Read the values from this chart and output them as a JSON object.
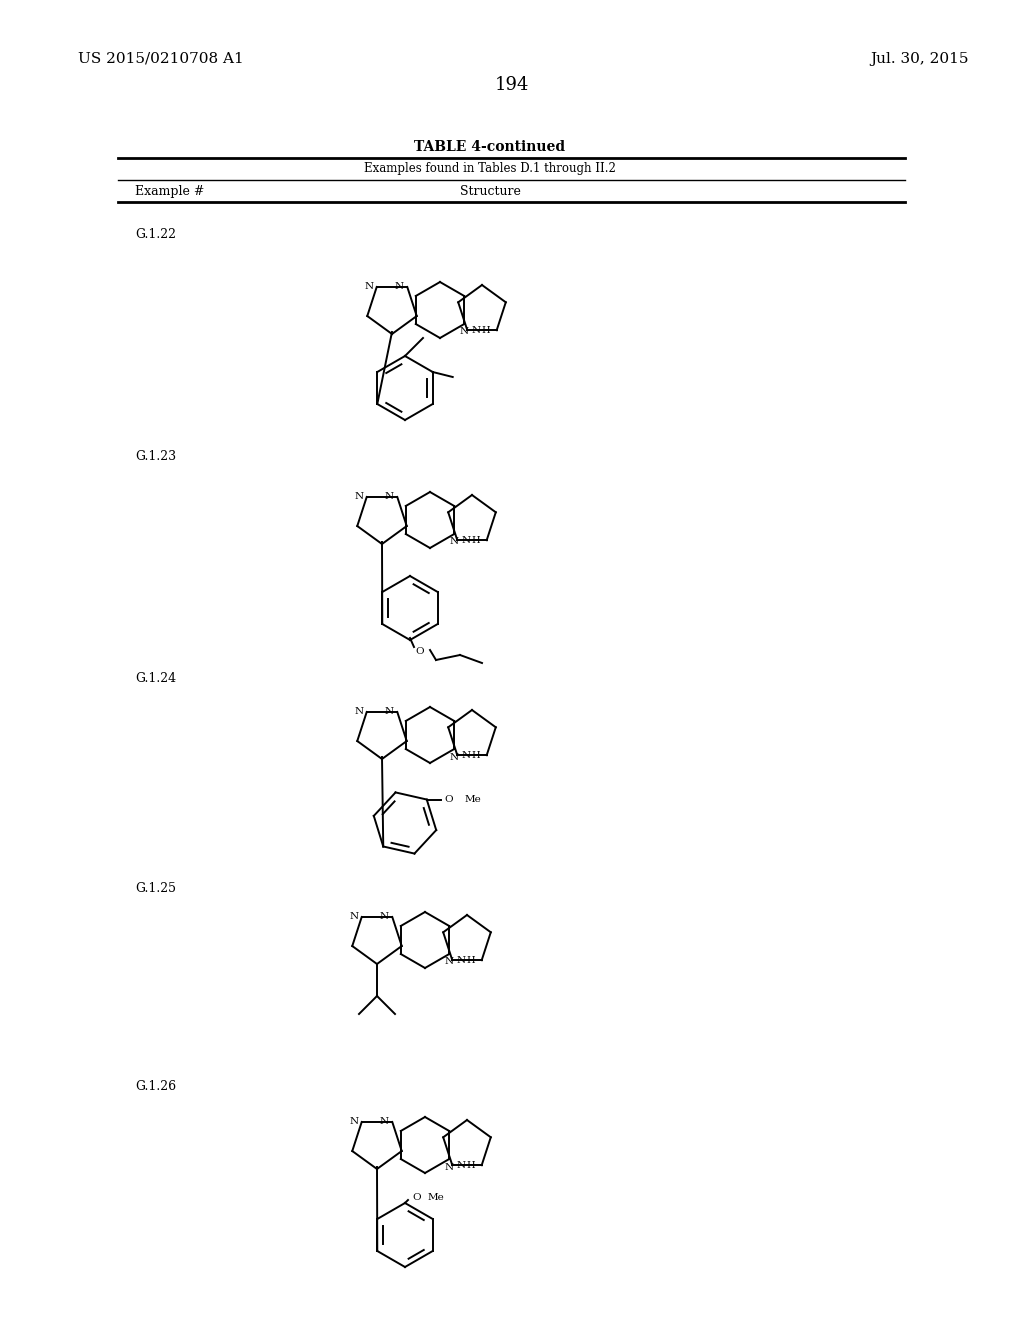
{
  "page_left": "US 2015/0210708 A1",
  "page_right": "Jul. 30, 2015",
  "page_number": "194",
  "table_title": "TABLE 4-continued",
  "table_subtitle": "Examples found in Tables D.1 through II.2",
  "col1_header": "Example #",
  "col2_header": "Structure",
  "examples": [
    "G.1.22",
    "G.1.23",
    "G.1.24",
    "G.1.25",
    "G.1.26"
  ],
  "background": "#ffffff",
  "text_color": "#000000"
}
